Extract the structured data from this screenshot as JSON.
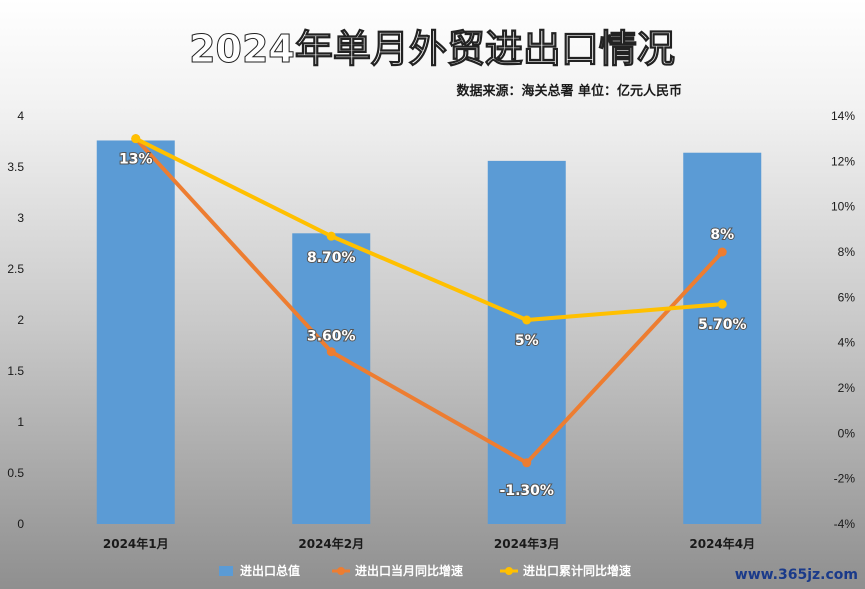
{
  "chart_data": {
    "type": "bar",
    "title": "2024年单月外贸进出口情况",
    "subtitle": "数据来源：海关总署 单位：亿元人民币",
    "categories": [
      "2024年1月",
      "2024年2月",
      "2024年3月",
      "2024年4月"
    ],
    "series": [
      {
        "name": "进出口总值",
        "type": "bar",
        "axis": "left",
        "values": [
          3.76,
          2.85,
          3.56,
          3.64
        ],
        "color": "#5b9bd5"
      },
      {
        "name": "进出口当月同比增速",
        "type": "line",
        "axis": "right",
        "values": [
          13.0,
          3.6,
          -1.3,
          8.0
        ],
        "labels": [
          "13%",
          "3.60%",
          "-1.30%",
          "8%"
        ],
        "color": "#ed7d31"
      },
      {
        "name": "进出口累计同比增速",
        "type": "line",
        "axis": "right",
        "values": [
          13.0,
          8.7,
          5.0,
          5.7
        ],
        "labels": [
          "",
          "8.70%",
          "5%",
          "5.70%"
        ],
        "color": "#ffc000"
      }
    ],
    "y_left": {
      "min": 0,
      "max": 4,
      "ticks": [
        "0",
        "0.5",
        "1",
        "1.5",
        "2",
        "2.5",
        "3",
        "3.5",
        "4"
      ]
    },
    "y_right": {
      "min": -4,
      "max": 14,
      "ticks": [
        "-4%",
        "-2%",
        "0%",
        "2%",
        "4%",
        "6%",
        "8%",
        "10%",
        "12%",
        "14%"
      ]
    },
    "grid": false,
    "legend": "bottom"
  },
  "watermark": "www.365jz.com"
}
